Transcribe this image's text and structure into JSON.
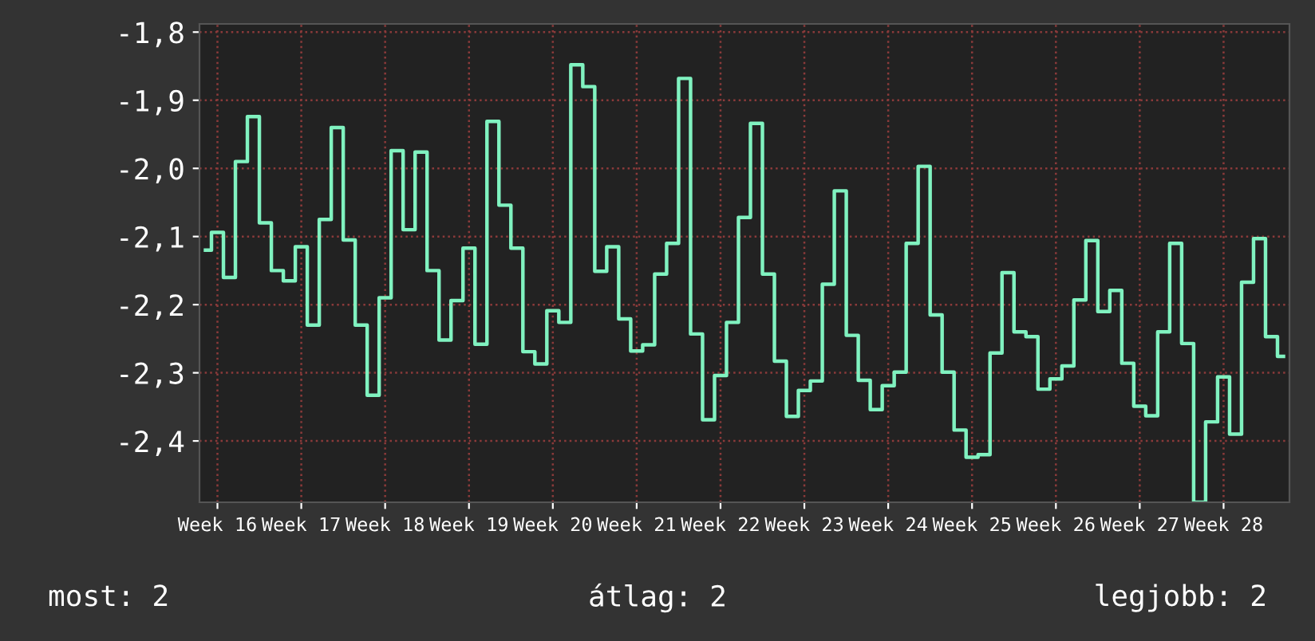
{
  "chart_data": {
    "type": "step",
    "color": "#80f2c0",
    "categories": [
      null,
      "Week 16",
      null,
      null,
      null,
      null,
      null,
      null,
      "Week 17",
      null,
      null,
      null,
      null,
      null,
      null,
      "Week 18",
      null,
      null,
      null,
      null,
      null,
      null,
      "Week 19",
      null,
      null,
      null,
      null,
      null,
      null,
      "Week 20",
      null,
      null,
      null,
      null,
      null,
      null,
      "Week 21",
      null,
      null,
      null,
      null,
      null,
      null,
      "Week 22",
      null,
      null,
      null,
      null,
      null,
      null,
      "Week 23",
      null,
      null,
      null,
      null,
      null,
      null,
      "Week 24",
      null,
      null,
      null,
      null,
      null,
      null,
      "Week 25",
      null,
      null,
      null,
      null,
      null,
      null,
      "Week 26",
      null,
      null,
      null,
      null,
      null,
      null,
      "Week 27",
      null,
      null,
      null,
      null,
      null,
      null,
      "Week 28",
      null,
      null,
      null,
      null,
      null
    ],
    "values": [
      -2.12,
      -2.094,
      -2.16,
      -1.99,
      -1.924,
      -2.08,
      -2.15,
      -2.165,
      -2.115,
      -2.23,
      -2.075,
      -1.94,
      -2.105,
      -2.23,
      -2.333,
      -2.19,
      -1.974,
      -2.09,
      -1.976,
      -2.15,
      -2.252,
      -2.194,
      -2.117,
      -2.258,
      -1.931,
      -2.054,
      -2.117,
      -2.269,
      -2.287,
      -2.209,
      -2.226,
      -1.848,
      -1.88,
      -2.151,
      -2.115,
      -2.221,
      -2.268,
      -2.259,
      -2.155,
      -2.11,
      -1.868,
      -2.243,
      -2.369,
      -2.304,
      -2.226,
      -2.072,
      -1.934,
      -2.155,
      -2.283,
      -2.364,
      -2.326,
      -2.312,
      -2.17,
      -2.033,
      -2.245,
      -2.311,
      -2.354,
      -2.319,
      -2.299,
      -2.11,
      -1.997,
      -2.215,
      -2.299,
      -2.384,
      -2.424,
      -2.42,
      -2.271,
      -2.153,
      -2.24,
      -2.247,
      -2.324,
      -2.309,
      -2.29,
      -2.193,
      -2.106,
      -2.21,
      -2.179,
      -2.286,
      -2.349,
      -2.363,
      -2.24,
      -2.11,
      -2.257,
      -2.49,
      -2.372,
      -2.306,
      -2.39,
      -2.167,
      -2.103,
      -2.247,
      -2.276
    ],
    "ylim": [
      -2.49,
      -1.788
    ],
    "yticks": [
      {
        "value": -2.4,
        "label": "-2,4"
      },
      {
        "value": -2.3,
        "label": "-2,3"
      },
      {
        "value": -2.2,
        "label": "-2,2"
      },
      {
        "value": -2.1,
        "label": "-2,1"
      },
      {
        "value": -2.0,
        "label": "-2,0"
      },
      {
        "value": -1.9,
        "label": "-1,9"
      },
      {
        "value": -1.8,
        "label": "-1,8"
      }
    ],
    "grid": true,
    "annotations": [
      "most: 2",
      "átlag: 2",
      "legjobb: 2"
    ]
  }
}
